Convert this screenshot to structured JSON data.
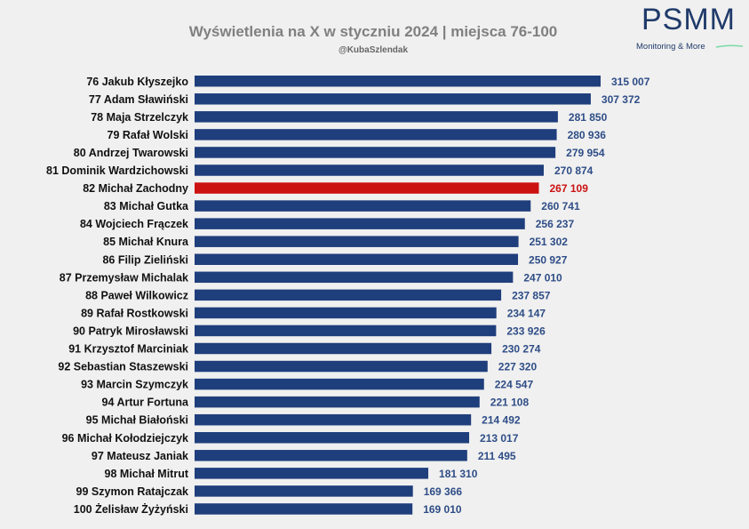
{
  "logo": {
    "text": "PSMM",
    "tagline": "Monitoring & More"
  },
  "colors": {
    "bar": "#1f3e7c",
    "highlight": "#cc1111",
    "value_text": "#2e4d86",
    "highlight_text": "#cc1111",
    "logo_swoosh": "#79d9a6"
  },
  "chart_data": {
    "type": "bar",
    "orientation": "horizontal",
    "title": "Wyświetlenia na X w styczniu 2024 | miejsca 76-100",
    "subtitle": "@KubaSzlendak",
    "xlim": [
      0,
      315007
    ],
    "grid": false,
    "highlight_index": 6,
    "categories": [
      "76 Jakub Kłyszejko",
      "77 Adam Sławiński",
      "78 Maja Strzelczyk",
      "79 Rafał Wolski",
      "80 Andrzej Twarowski",
      "81 Dominik Wardzichowski",
      "82 Michał Zachodny",
      "83 Michał Gutka",
      "84 Wojciech Frączek",
      "85 Michał Knura",
      "86 Filip Zieliński",
      "87 Przemysław Michalak",
      "88 Paweł Wilkowicz",
      "89 Rafał Rostkowski",
      "90 Patryk Mirosławski",
      "91 Krzysztof Marciniak",
      "92 Sebastian Staszewski",
      "93 Marcin Szymczyk",
      "94 Artur Fortuna",
      "95 Michał Białoński",
      "96 Michał Kołodziejczyk",
      "97 Mateusz Janiak",
      "98 Michał Mitrut",
      "99 Szymon Ratajczak",
      "100 Żelisław Żyżyński"
    ],
    "values": [
      315007,
      307372,
      281850,
      280936,
      279954,
      270874,
      267109,
      260741,
      256237,
      251302,
      250927,
      247010,
      237857,
      234147,
      233926,
      230274,
      227320,
      224547,
      221108,
      214492,
      213017,
      211495,
      181310,
      169366,
      169010
    ],
    "value_labels": [
      "315 007",
      "307 372",
      "281 850",
      "280 936",
      "279 954",
      "270 874",
      "267 109",
      "260 741",
      "256 237",
      "251 302",
      "250 927",
      "247 010",
      "237 857",
      "234 147",
      "233 926",
      "230 274",
      "227 320",
      "224 547",
      "221 108",
      "214 492",
      "213 017",
      "211 495",
      "181 310",
      "169 366",
      "169 010"
    ]
  }
}
